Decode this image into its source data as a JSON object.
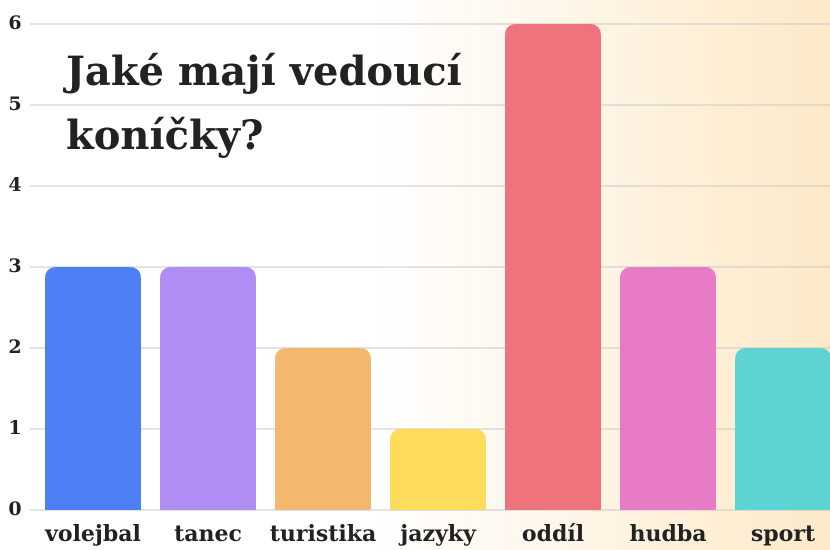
{
  "chart_data": {
    "type": "bar",
    "title": "Jaké mají vedoucí koníčky?",
    "categories": [
      "volejbal",
      "tanec",
      "turistika",
      "jazyky",
      "oddíl",
      "hudba",
      "sport"
    ],
    "values": [
      3,
      3,
      2,
      1,
      6,
      3,
      2
    ],
    "colors": [
      "#4d7ff5",
      "#af8df2",
      "#f3b86d",
      "#fddc5c",
      "#ef737c",
      "#e87bc6",
      "#5ed3d3"
    ],
    "ylim": [
      0,
      6
    ],
    "yticks": [
      0,
      1,
      2,
      3,
      4,
      5,
      6
    ],
    "grid": true
  }
}
